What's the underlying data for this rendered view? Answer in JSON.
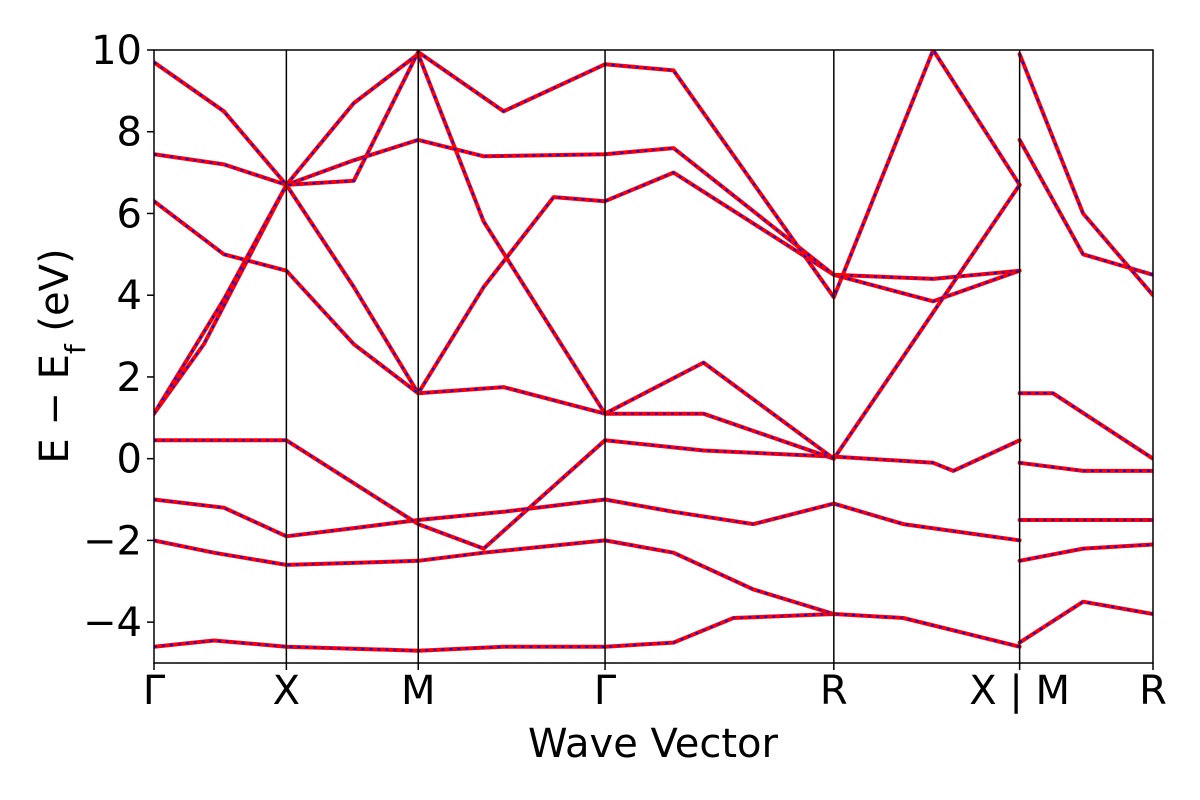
{
  "chart_data": {
    "type": "line",
    "title": "",
    "xlabel": "Wave Vector",
    "ylabel": "E − E_f (eV)",
    "ylabel_parts": {
      "main": "E − E",
      "sub": "f",
      "unit": " (eV)"
    },
    "ylim": [
      -5,
      10
    ],
    "yticks": [
      -4,
      -2,
      0,
      2,
      4,
      6,
      8,
      10
    ],
    "ytick_labels": [
      "−4",
      "−2",
      "0",
      "2",
      "4",
      "6",
      "8",
      "10"
    ],
    "xlim": [
      0,
      1
    ],
    "kpoints": [
      {
        "label": "Γ",
        "x": 0.0
      },
      {
        "label": "X",
        "x": 0.1325
      },
      {
        "label": "M",
        "x": 0.2645
      },
      {
        "label": "Γ",
        "x": 0.4515
      },
      {
        "label": "R",
        "x": 0.6805
      },
      {
        "label": "X | M",
        "x": 0.8665
      },
      {
        "label": "R",
        "x": 1.0
      }
    ],
    "grid": false,
    "legend": "none",
    "colors": {
      "solid": "#ff0000",
      "dashed": "#0000ff",
      "vlines": "#000000"
    },
    "series": [
      {
        "values": [
          [
            0.0,
            -4.6
          ],
          [
            0.06,
            -4.45
          ],
          [
            0.1325,
            -4.6
          ],
          [
            0.2,
            -4.65
          ],
          [
            0.2645,
            -4.7
          ],
          [
            0.35,
            -4.6
          ],
          [
            0.4515,
            -4.6
          ],
          [
            0.52,
            -4.5
          ],
          [
            0.58,
            -3.9
          ],
          [
            0.6805,
            -3.8
          ],
          [
            0.75,
            -3.9
          ],
          [
            0.8665,
            -4.6
          ]
        ]
      },
      {
        "values": [
          [
            0.0,
            -2.0
          ],
          [
            0.06,
            -2.3
          ],
          [
            0.1325,
            -2.6
          ],
          [
            0.2,
            -2.55
          ],
          [
            0.2645,
            -2.5
          ],
          [
            0.33,
            -2.3
          ],
          [
            0.4515,
            -2.0
          ],
          [
            0.52,
            -2.3
          ],
          [
            0.6,
            -3.2
          ],
          [
            0.6805,
            -3.8
          ]
        ]
      },
      {
        "values": [
          [
            0.0,
            -1.0
          ],
          [
            0.07,
            -1.2
          ],
          [
            0.1325,
            -1.9
          ],
          [
            0.2,
            -1.7
          ],
          [
            0.2645,
            -1.5
          ],
          [
            0.35,
            -1.3
          ],
          [
            0.4515,
            -1.0
          ],
          [
            0.52,
            -1.3
          ],
          [
            0.6,
            -1.6
          ],
          [
            0.6805,
            -1.1
          ],
          [
            0.75,
            -1.6
          ],
          [
            0.8665,
            -2.0
          ]
        ]
      },
      {
        "values": [
          [
            0.0,
            0.45
          ],
          [
            0.1325,
            0.45
          ],
          [
            0.2,
            -0.6
          ],
          [
            0.2645,
            -1.6
          ],
          [
            0.33,
            -2.2
          ],
          [
            0.4515,
            0.45
          ],
          [
            0.55,
            0.2
          ],
          [
            0.6805,
            0.05
          ],
          [
            0.78,
            -0.1
          ],
          [
            0.8,
            -0.3
          ],
          [
            0.8665,
            0.45
          ]
        ]
      },
      {
        "values": [
          [
            0.0,
            1.1
          ],
          [
            0.05,
            2.8
          ],
          [
            0.1325,
            6.7
          ],
          [
            0.2,
            4.2
          ],
          [
            0.2645,
            1.6
          ],
          [
            0.35,
            1.75
          ],
          [
            0.4515,
            1.1
          ],
          [
            0.55,
            1.1
          ],
          [
            0.6805,
            0.0
          ],
          [
            0.75,
            2.5
          ],
          [
            0.8665,
            6.7
          ]
        ]
      },
      {
        "values": [
          [
            0.0,
            1.1
          ],
          [
            0.07,
            3.9
          ],
          [
            0.1325,
            6.7
          ],
          [
            0.2,
            8.7
          ],
          [
            0.2645,
            9.9
          ],
          [
            0.33,
            5.8
          ],
          [
            0.4515,
            1.1
          ],
          [
            0.55,
            2.35
          ],
          [
            0.6805,
            0.0
          ]
        ]
      },
      {
        "values": [
          [
            0.0,
            6.3
          ],
          [
            0.07,
            5.0
          ],
          [
            0.1325,
            4.6
          ],
          [
            0.2,
            2.8
          ],
          [
            0.2645,
            1.6
          ],
          [
            0.33,
            4.2
          ],
          [
            0.4,
            6.4
          ],
          [
            0.4515,
            6.3
          ],
          [
            0.52,
            7.0
          ],
          [
            0.6805,
            4.5
          ],
          [
            0.78,
            4.4
          ],
          [
            0.8665,
            4.6
          ]
        ]
      },
      {
        "values": [
          [
            0.0,
            7.45
          ],
          [
            0.07,
            7.2
          ],
          [
            0.1325,
            6.7
          ],
          [
            0.2,
            7.3
          ],
          [
            0.2645,
            7.8
          ],
          [
            0.33,
            7.4
          ],
          [
            0.4515,
            7.45
          ],
          [
            0.52,
            7.6
          ],
          [
            0.6805,
            4.5
          ],
          [
            0.78,
            3.85
          ],
          [
            0.8665,
            4.6
          ]
        ]
      },
      {
        "values": [
          [
            0.0,
            9.7
          ],
          [
            0.07,
            8.5
          ],
          [
            0.1325,
            6.7
          ],
          [
            0.2,
            6.8
          ],
          [
            0.2645,
            9.95
          ],
          [
            0.35,
            8.5
          ],
          [
            0.4515,
            9.65
          ],
          [
            0.52,
            9.5
          ],
          [
            0.6805,
            3.95
          ],
          [
            0.78,
            10.0
          ],
          [
            0.8665,
            6.7
          ]
        ]
      },
      {
        "values": [
          [
            0.8665,
            1.6
          ],
          [
            0.9,
            1.6
          ],
          [
            1.0,
            0.0
          ]
        ]
      },
      {
        "values": [
          [
            0.8665,
            -0.1
          ],
          [
            0.93,
            -0.3
          ],
          [
            1.0,
            -0.3
          ]
        ]
      },
      {
        "values": [
          [
            0.8665,
            -1.5
          ],
          [
            0.93,
            -1.5
          ],
          [
            1.0,
            -1.5
          ]
        ]
      },
      {
        "values": [
          [
            0.8665,
            -2.5
          ],
          [
            0.93,
            -2.2
          ],
          [
            1.0,
            -2.1
          ]
        ]
      },
      {
        "values": [
          [
            0.8665,
            -4.5
          ],
          [
            0.93,
            -3.5
          ],
          [
            1.0,
            -3.8
          ]
        ]
      },
      {
        "values": [
          [
            0.8665,
            7.8
          ],
          [
            0.93,
            5.0
          ],
          [
            1.0,
            4.5
          ]
        ]
      },
      {
        "values": [
          [
            0.8665,
            9.9
          ],
          [
            0.93,
            6.0
          ],
          [
            1.0,
            4.0
          ]
        ]
      }
    ]
  }
}
